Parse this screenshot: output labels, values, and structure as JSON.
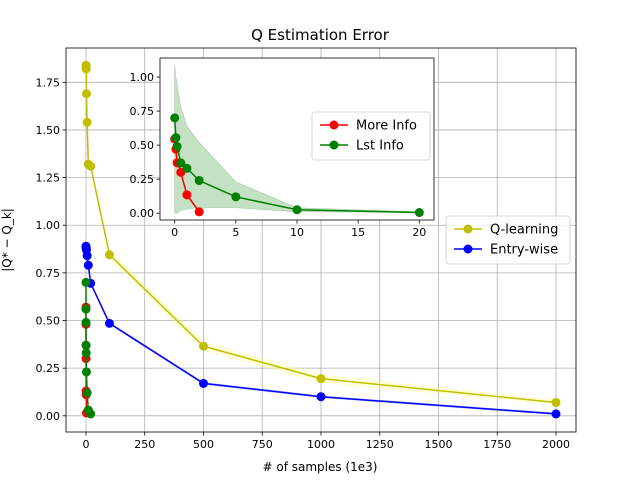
{
  "chart_data": [
    {
      "type": "line",
      "title": "Q Estimation Error",
      "xlabel": "# of samples (1e3)",
      "ylabel": "|Q* − Q_k|",
      "xlim": [
        -85,
        2085
      ],
      "ylim": [
        -0.085,
        1.93
      ],
      "xticks": [
        0,
        250,
        500,
        750,
        1000,
        1250,
        1500,
        1750,
        2000
      ],
      "xtick_labels": [
        "0",
        "250",
        "500",
        "750",
        "1000",
        "1250",
        "1500",
        "1750",
        "2000"
      ],
      "yticks": [
        0,
        0.25,
        0.5,
        0.75,
        1.0,
        1.25,
        1.5,
        1.75
      ],
      "ytick_labels": [
        "0.00",
        "0.25",
        "0.50",
        "0.75",
        "1.00",
        "1.25",
        "1.50",
        "1.75"
      ],
      "grid": true,
      "legend_position": "right",
      "series": [
        {
          "name": "Q-learning",
          "color": "#bfbf00",
          "band_color": "#ffff80",
          "x": [
            0,
            0.5,
            1,
            2,
            5,
            10,
            20,
            100,
            500,
            1000,
            2000
          ],
          "y": [
            1.84,
            1.835,
            1.82,
            1.69,
            1.54,
            1.32,
            1.31,
            0.845,
            0.365,
            0.195,
            0.07
          ],
          "band": [
            0.01,
            0.01,
            0.01,
            0.01,
            0.01,
            0.01,
            0.01,
            0.02,
            0.02,
            0.02,
            0.01
          ]
        },
        {
          "name": "Entry-wise",
          "color": "#0000ff",
          "band_color": "#8080ff",
          "x": [
            0,
            0.5,
            1,
            2,
            5,
            10,
            20,
            100,
            500,
            1000,
            2000
          ],
          "y": [
            0.89,
            0.885,
            0.88,
            0.87,
            0.84,
            0.79,
            0.695,
            0.485,
            0.17,
            0.1,
            0.01
          ],
          "band": [
            0.005,
            0.005,
            0.005,
            0.005,
            0.005,
            0.005,
            0.005,
            0.005,
            0.005,
            0.005,
            0.005
          ]
        },
        {
          "name": "More Info",
          "color": "#ff0000",
          "legend": false,
          "x": [
            0,
            0.1,
            0.2,
            0.3,
            0.5,
            1,
            2
          ],
          "y": [
            0.57,
            0.48,
            0.37,
            0.3,
            0.13,
            0.11,
            0.015
          ]
        },
        {
          "name": "Lst Info",
          "color": "#008000",
          "legend": false,
          "x": [
            0,
            0.1,
            0.2,
            0.5,
            1,
            2,
            5,
            10,
            20
          ],
          "y": [
            0.7,
            0.56,
            0.49,
            0.37,
            0.33,
            0.23,
            0.12,
            0.03,
            0.01
          ]
        }
      ]
    },
    {
      "type": "line",
      "title": "",
      "xlim": [
        -1.2,
        21.2
      ],
      "ylim": [
        -0.05,
        1.14
      ],
      "xticks": [
        0,
        5,
        10,
        15,
        20
      ],
      "xtick_labels": [
        "0",
        "5",
        "10",
        "15",
        "20"
      ],
      "yticks": [
        0,
        0.25,
        0.5,
        0.75,
        1.0
      ],
      "ytick_labels": [
        "0.00",
        "0.25",
        "0.50",
        "0.75",
        "1.00"
      ],
      "grid": false,
      "legend_position": "right",
      "series": [
        {
          "name": "More Info",
          "color": "#ff0000",
          "band_color": "#ff9999",
          "x": [
            0,
            0.1,
            0.2,
            0.3,
            0.5,
            1,
            2
          ],
          "y": [
            0.545,
            0.47,
            0.37,
            0.37,
            0.3,
            0.135,
            0.01
          ],
          "band": [
            0.05,
            0.04,
            0.03,
            0.03,
            0.02,
            0.01,
            0.005
          ]
        },
        {
          "name": "Lst Info",
          "color": "#008000",
          "band_color": "#3a9a3a",
          "x": [
            0,
            0.1,
            0.2,
            0.5,
            1,
            2,
            5,
            10,
            20
          ],
          "y": [
            0.7,
            0.555,
            0.49,
            0.37,
            0.33,
            0.24,
            0.12,
            0.025,
            0.005
          ],
          "band_lower": [
            0.0,
            0.0,
            0.0,
            0.02,
            0.03,
            0.04,
            0.04,
            0.01,
            0.005
          ],
          "band_upper": [
            1.1,
            1.0,
            0.95,
            0.78,
            0.64,
            0.52,
            0.23,
            0.04,
            0.01
          ]
        }
      ]
    }
  ]
}
